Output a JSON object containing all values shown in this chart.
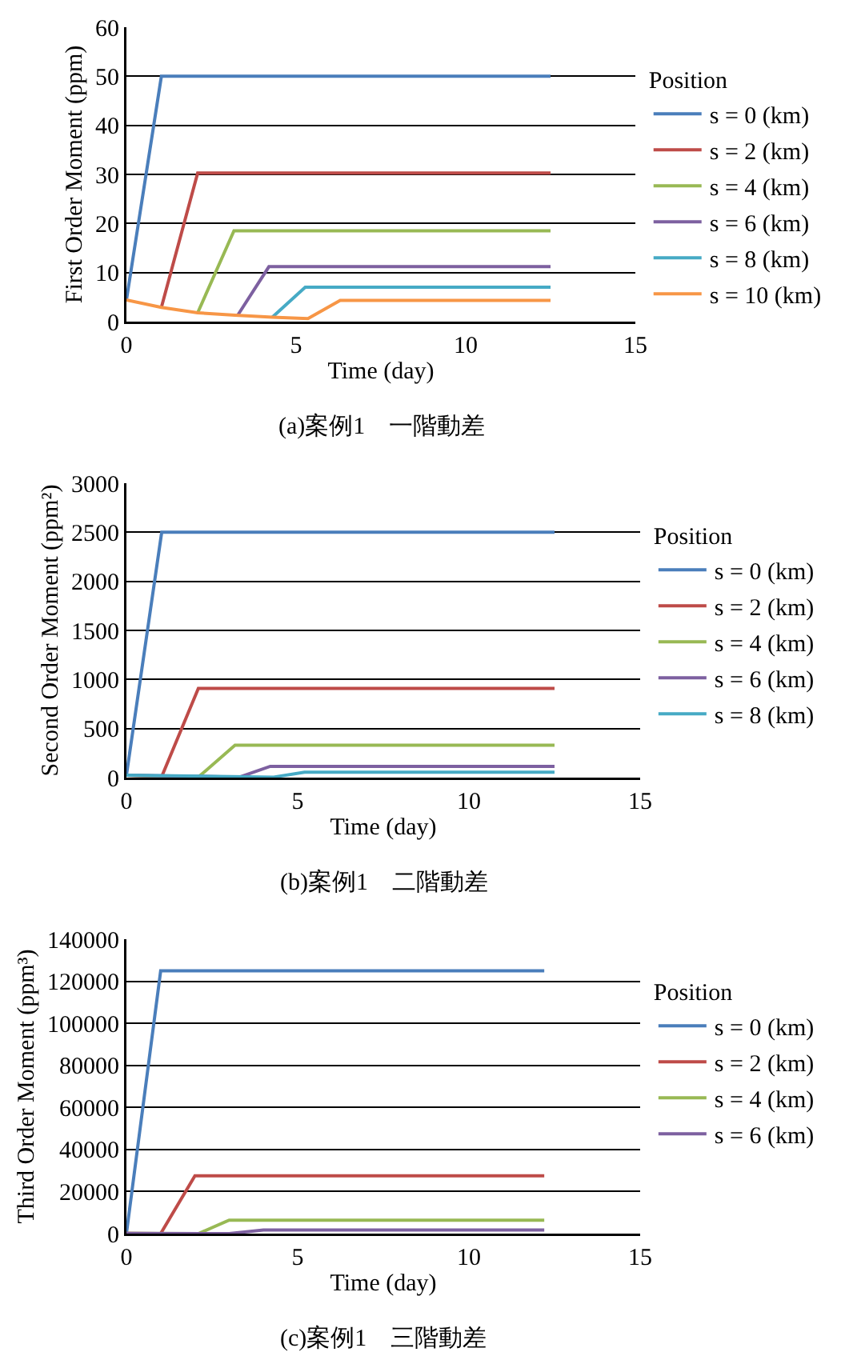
{
  "chart_data": [
    {
      "type": "line",
      "xlabel": "Time (day)",
      "ylabel": "First Order Moment (ppm)",
      "legend_title": "Position",
      "annotations": [
        "(a)案例1　一階動差"
      ],
      "xlim": [
        0,
        15
      ],
      "xticks": [
        0,
        5,
        10,
        15
      ],
      "ylim": [
        0,
        60
      ],
      "yticks": [
        0,
        10,
        20,
        30,
        40,
        50,
        60
      ],
      "grid": "y",
      "legend": "right",
      "marker": "none",
      "line_style": "solid",
      "series": [
        {
          "name": "s = 0 (km)",
          "color": "#4a7ebb",
          "x": [
            0,
            1.03,
            12.5
          ],
          "values": [
            4.4,
            50,
            50
          ]
        },
        {
          "name": "s = 2 (km)",
          "color": "#be4b48",
          "x": [
            1.03,
            2.1,
            12.5
          ],
          "values": [
            2.9,
            30.3,
            30.3
          ]
        },
        {
          "name": "s = 4 (km)",
          "color": "#98b954",
          "x": [
            2.1,
            3.17,
            12.5
          ],
          "values": [
            1.8,
            18.5,
            18.5
          ]
        },
        {
          "name": "s = 6 (km)",
          "color": "#7d60a0",
          "x": [
            3.28,
            4.2,
            12.5
          ],
          "values": [
            1.3,
            11.2,
            11.2
          ]
        },
        {
          "name": "s = 8 (km)",
          "color": "#46aac5",
          "x": [
            4.3,
            5.27,
            12.5
          ],
          "values": [
            0.9,
            7,
            7
          ]
        },
        {
          "name": "s = 10 (km)",
          "color": "#f79646",
          "x": [
            0,
            1.03,
            2.1,
            3.2,
            4.3,
            5.35,
            6.3,
            12.5
          ],
          "values": [
            4.4,
            2.9,
            1.8,
            1.3,
            0.9,
            0.6,
            4.3,
            4.3
          ]
        }
      ]
    },
    {
      "type": "line",
      "xlabel": "Time (day)",
      "ylabel": "Second Order Moment (ppm²)",
      "legend_title": "Position",
      "annotations": [
        "(b)案例1　二階動差"
      ],
      "xlim": [
        0,
        15
      ],
      "xticks": [
        0,
        5,
        10,
        15
      ],
      "ylim": [
        0,
        3000
      ],
      "yticks": [
        0,
        500,
        1000,
        1500,
        2000,
        2500,
        3000
      ],
      "grid": "y",
      "legend": "right",
      "marker": "none",
      "line_style": "solid",
      "series": [
        {
          "name": "s = 0 (km)",
          "color": "#4a7ebb",
          "x": [
            0,
            1.03,
            12.5
          ],
          "values": [
            25,
            2500,
            2500
          ]
        },
        {
          "name": "s = 2 (km)",
          "color": "#be4b48",
          "x": [
            0,
            1.03,
            2.1,
            12.5
          ],
          "values": [
            25,
            10,
            910,
            910
          ]
        },
        {
          "name": "s = 4 (km)",
          "color": "#98b954",
          "x": [
            0,
            2.1,
            3.17,
            12.5
          ],
          "values": [
            25,
            5,
            330,
            330
          ]
        },
        {
          "name": "s = 6 (km)",
          "color": "#7d60a0",
          "x": [
            0,
            3.3,
            4.2,
            12.5
          ],
          "values": [
            25,
            5,
            115,
            115
          ]
        },
        {
          "name": "s = 8 (km)",
          "color": "#46aac5",
          "x": [
            0,
            4.3,
            5.2,
            12.5
          ],
          "values": [
            25,
            5,
            55,
            55
          ]
        }
      ]
    },
    {
      "type": "line",
      "xlabel": "Time (day)",
      "ylabel": "Third Order Moment (ppm³)",
      "legend_title": "Position",
      "annotations": [
        "(c)案例1　三階動差"
      ],
      "xlim": [
        0,
        15
      ],
      "xticks": [
        0,
        5,
        10,
        15
      ],
      "ylim": [
        0,
        140000
      ],
      "yticks": [
        0,
        20000,
        40000,
        60000,
        80000,
        100000,
        120000,
        140000
      ],
      "grid": "y",
      "legend": "right",
      "marker": "none",
      "line_style": "solid",
      "series": [
        {
          "name": "s = 0 (km)",
          "color": "#4a7ebb",
          "x": [
            0,
            1,
            12.2
          ],
          "values": [
            100,
            125000,
            125000
          ]
        },
        {
          "name": "s = 2 (km)",
          "color": "#be4b48",
          "x": [
            0,
            1,
            2,
            12.2
          ],
          "values": [
            100,
            0,
            27500,
            27500
          ]
        },
        {
          "name": "s = 4 (km)",
          "color": "#98b954",
          "x": [
            0,
            2.1,
            3,
            12.2
          ],
          "values": [
            100,
            0,
            6400,
            6400
          ]
        },
        {
          "name": "s = 6 (km)",
          "color": "#7d60a0",
          "x": [
            0,
            3,
            4,
            12.2
          ],
          "values": [
            100,
            0,
            1700,
            1700
          ]
        }
      ]
    }
  ]
}
